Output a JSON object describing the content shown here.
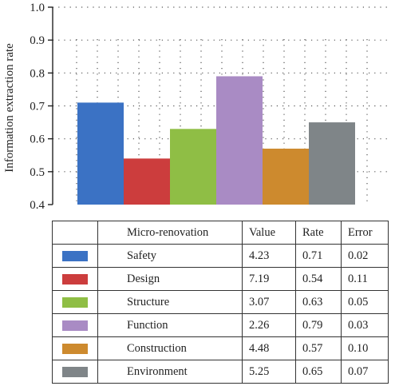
{
  "chart_data": {
    "type": "bar",
    "ylabel": "Information extraction rate",
    "ylim": [
      0.4,
      1.0
    ],
    "yticks": [
      "0.4",
      "0.5",
      "0.6",
      "0.7",
      "0.8",
      "0.9",
      "1.0"
    ],
    "grid": "dotted",
    "categories": [
      "Safety",
      "Design",
      "Structure",
      "Function",
      "Construction",
      "Environment"
    ],
    "values": [
      0.71,
      0.54,
      0.63,
      0.79,
      0.57,
      0.65
    ],
    "colors": [
      "#3b72c4",
      "#cc3d3d",
      "#8fbe45",
      "#a98bc4",
      "#cd8a2e",
      "#7f8588"
    ]
  },
  "table": {
    "headers": [
      "",
      "Micro-renovation",
      "Value",
      "Rate",
      "Error"
    ],
    "rows": [
      {
        "name": "Safety",
        "value": "4.23",
        "rate": "0.71",
        "error": "0.02"
      },
      {
        "name": "Design",
        "value": "7.19",
        "rate": "0.54",
        "error": "0.11"
      },
      {
        "name": "Structure",
        "value": "3.07",
        "rate": "0.63",
        "error": "0.05"
      },
      {
        "name": "Function",
        "value": "2.26",
        "rate": "0.79",
        "error": "0.03"
      },
      {
        "name": "Construction",
        "value": "4.48",
        "rate": "0.57",
        "error": "0.10"
      },
      {
        "name": "Environment",
        "value": "5.25",
        "rate": "0.65",
        "error": "0.07"
      }
    ]
  }
}
